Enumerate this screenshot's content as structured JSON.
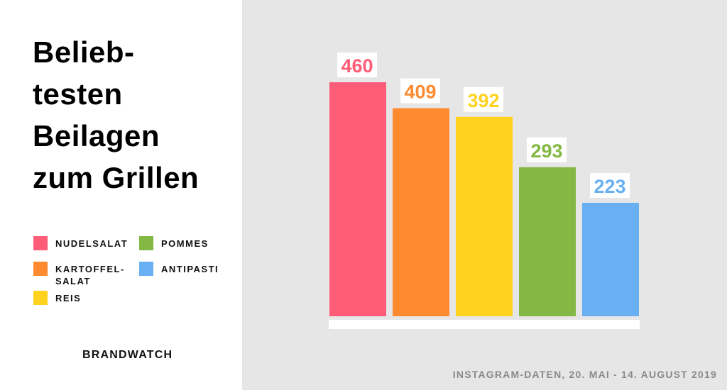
{
  "title_lines": [
    "Belieb-",
    "testen",
    "Beilagen",
    "zum Grillen"
  ],
  "legend": {
    "col1": [
      {
        "label_lines": [
          "NUDELSALAT"
        ],
        "color": "#ff5d77"
      },
      {
        "label_lines": [
          "KARTOFFEL-",
          "SALAT"
        ],
        "color": "#ff8a30"
      },
      {
        "label_lines": [
          "REIS"
        ],
        "color": "#ffd21e"
      }
    ],
    "col2": [
      {
        "label_lines": [
          "POMMES"
        ],
        "color": "#83b844"
      },
      {
        "label_lines": [
          "ANTIPASTI"
        ],
        "color": "#68b0f2"
      }
    ]
  },
  "brand": "BRANDWATCH",
  "footnote": "INSTAGRAM-DATEN, 20. MAI - 14. AUGUST 2019",
  "colors": {
    "left_background": "#ffffff",
    "right_background": "#e6e6e6",
    "baseline": "#ffffff"
  },
  "chart_data": {
    "type": "bar",
    "categories": [
      "NUDELSALAT",
      "KARTOFFELSALAT",
      "REIS",
      "POMMES",
      "ANTIPASTI"
    ],
    "values": [
      460,
      409,
      392,
      293,
      223
    ],
    "colors": [
      "#ff5d77",
      "#ff8a30",
      "#ffd21e",
      "#83b844",
      "#68b0f2"
    ],
    "data_labels": [
      "460",
      "409",
      "392",
      "293",
      "223"
    ],
    "title": "",
    "xlabel": "",
    "ylabel": "",
    "ylim": [
      0,
      460
    ],
    "grid": false,
    "legend_position": "left"
  }
}
